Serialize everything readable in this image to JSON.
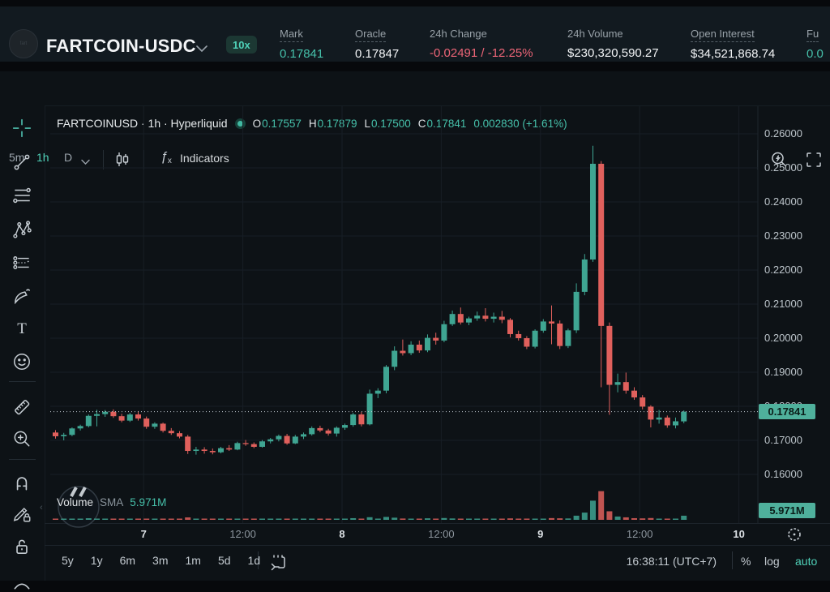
{
  "header": {
    "symbol": "FARTCOIN-USDC",
    "badge": "10x",
    "stats": [
      {
        "label": "Mark",
        "value": "0.17841"
      },
      {
        "label": "Oracle",
        "value": "0.17847"
      },
      {
        "label": "24h Change",
        "value": "-0.02491 / -12.25%"
      },
      {
        "label": "24h Volume",
        "value": "$230,320,590.27"
      },
      {
        "label": "Open Interest",
        "value": "$34,521,868.74"
      },
      {
        "label": "Fu",
        "value": "0.0"
      }
    ]
  },
  "toolbar": {
    "intervals": [
      {
        "label": "5m",
        "active": false
      },
      {
        "label": "1h",
        "active": true
      },
      {
        "label": "D",
        "active": false
      }
    ],
    "indicators_label": "Indicators"
  },
  "icons": {
    "fx_f": "ƒ",
    "fx_x": "x",
    "text_tool": "T"
  },
  "legend": {
    "symbol_line": "FARTCOINUSD · 1h · Hyperliquid",
    "ohlc": [
      {
        "k": "O",
        "v": "0.17557"
      },
      {
        "k": "H",
        "v": "0.17879"
      },
      {
        "k": "L",
        "v": "0.17500"
      },
      {
        "k": "C",
        "v": "0.17841"
      }
    ],
    "change": "0.002830 (+1.61%)"
  },
  "volume_indicator": {
    "title": "Volume",
    "sma": "SMA",
    "value": "5.971M"
  },
  "axis": {
    "price_tag": "0.17841",
    "volume_tag": "5.971M"
  },
  "bottom_toolbar": {
    "ranges": [
      "5y",
      "1y",
      "6m",
      "3m",
      "1m",
      "5d",
      "1d"
    ],
    "clock": "16:38:11 (UTC+7)",
    "percent": "%",
    "log": "log",
    "auto": "auto"
  },
  "chart_data": {
    "type": "candlestick",
    "title": "FARTCOINUSD · 1h · Hyperliquid",
    "interval": "1h",
    "exchange": "Hyperliquid",
    "current_price": 0.17841,
    "last": {
      "open": 0.17557,
      "high": 0.17879,
      "low": 0.175,
      "close": 0.17841,
      "change": "0.002830",
      "change_pct": "+1.61%"
    },
    "price_axis_range": [
      0.16,
      0.26
    ],
    "volume": {
      "current": "5.971M",
      "unit": "M"
    },
    "price_ticks": [
      {
        "value": 0.26,
        "label": "0.26000"
      },
      {
        "value": 0.25,
        "label": "0.25000"
      },
      {
        "value": 0.24,
        "label": "0.24000"
      },
      {
        "value": 0.23,
        "label": "0.23000"
      },
      {
        "value": 0.22,
        "label": "0.22000"
      },
      {
        "value": 0.21,
        "label": "0.21000"
      },
      {
        "value": 0.2,
        "label": "0.20000"
      },
      {
        "value": 0.19,
        "label": "0.19000"
      },
      {
        "value": 0.18,
        "label": "0.18000"
      },
      {
        "value": 0.17,
        "label": "0.17000"
      },
      {
        "value": 0.16,
        "label": "0.16000"
      }
    ],
    "time_ticks": [
      {
        "slot": 11,
        "label": "7",
        "major": true
      },
      {
        "slot": 23,
        "label": "12:00",
        "major": false
      },
      {
        "slot": 35,
        "label": "8",
        "major": true
      },
      {
        "slot": 47,
        "label": "12:00",
        "major": false
      },
      {
        "slot": 59,
        "label": "9",
        "major": true
      },
      {
        "slot": 71,
        "label": "12:00",
        "major": false
      },
      {
        "slot": 83,
        "label": "10",
        "major": true
      }
    ],
    "candles": [
      [
        0.1723,
        0.173,
        0.1705,
        0.1712,
        1.2
      ],
      [
        0.1712,
        0.1722,
        0.17,
        0.1716,
        0.9
      ],
      [
        0.1716,
        0.1738,
        0.1712,
        0.1735,
        1.1
      ],
      [
        0.1735,
        0.1746,
        0.1729,
        0.1742,
        1.0
      ],
      [
        0.1742,
        0.1776,
        0.1738,
        0.1772,
        2.3
      ],
      [
        0.1772,
        0.179,
        0.1741,
        0.1777,
        1.8
      ],
      [
        0.1777,
        0.1789,
        0.1769,
        0.1784,
        1.2
      ],
      [
        0.1784,
        0.1791,
        0.1766,
        0.1771,
        1.0
      ],
      [
        0.1771,
        0.1778,
        0.1753,
        0.1758,
        1.4
      ],
      [
        0.1758,
        0.1781,
        0.1754,
        0.1776,
        1.1
      ],
      [
        0.1776,
        0.1786,
        0.1758,
        0.1764,
        0.9
      ],
      [
        0.1764,
        0.177,
        0.1734,
        0.174,
        1.6
      ],
      [
        0.174,
        0.1753,
        0.1734,
        0.1749,
        0.8
      ],
      [
        0.1749,
        0.1752,
        0.1723,
        0.1728,
        1.3
      ],
      [
        0.1728,
        0.1736,
        0.1716,
        0.1721,
        1.0
      ],
      [
        0.1721,
        0.1727,
        0.1706,
        0.1711,
        1.2
      ],
      [
        0.1711,
        0.1716,
        0.166,
        0.1669,
        3.5
      ],
      [
        0.1669,
        0.1681,
        0.1658,
        0.1673,
        1.4
      ],
      [
        0.1673,
        0.168,
        0.1661,
        0.1669,
        0.9
      ],
      [
        0.1669,
        0.1676,
        0.1659,
        0.1665,
        0.8
      ],
      [
        0.1665,
        0.1681,
        0.1662,
        0.1677,
        1.0
      ],
      [
        0.1677,
        0.1686,
        0.1669,
        0.1673,
        0.7
      ],
      [
        0.1673,
        0.1696,
        0.1671,
        0.1692,
        1.2
      ],
      [
        0.1692,
        0.1701,
        0.1684,
        0.1689,
        0.8
      ],
      [
        0.1689,
        0.1694,
        0.1677,
        0.1681,
        0.9
      ],
      [
        0.1681,
        0.1701,
        0.1679,
        0.1697,
        1.0
      ],
      [
        0.1697,
        0.1707,
        0.1691,
        0.1703,
        0.9
      ],
      [
        0.1703,
        0.1717,
        0.1697,
        0.1713,
        1.1
      ],
      [
        0.1713,
        0.1719,
        0.1687,
        0.1691,
        1.5
      ],
      [
        0.1691,
        0.1716,
        0.1689,
        0.1711,
        1.0
      ],
      [
        0.1711,
        0.1723,
        0.1704,
        0.1718,
        0.9
      ],
      [
        0.1718,
        0.1741,
        0.1714,
        0.1736,
        1.4
      ],
      [
        0.1736,
        0.1743,
        0.1724,
        0.1729,
        0.8
      ],
      [
        0.1729,
        0.1734,
        0.1714,
        0.172,
        1.0
      ],
      [
        0.172,
        0.1741,
        0.1711,
        0.1737,
        1.2
      ],
      [
        0.1737,
        0.1749,
        0.1731,
        0.1745,
        1.1
      ],
      [
        0.1745,
        0.1781,
        0.174,
        0.1776,
        2.4
      ],
      [
        0.1776,
        0.1783,
        0.1741,
        0.1747,
        1.6
      ],
      [
        0.1747,
        0.1849,
        0.1744,
        0.1837,
        3.8
      ],
      [
        0.1837,
        0.1853,
        0.1824,
        0.1846,
        1.7
      ],
      [
        0.1846,
        0.1921,
        0.1838,
        0.1916,
        4.2
      ],
      [
        0.1916,
        0.1976,
        0.1906,
        0.1963,
        3.1
      ],
      [
        0.1963,
        0.1996,
        0.1949,
        0.1956,
        1.9
      ],
      [
        0.1956,
        0.1991,
        0.195,
        0.1981,
        1.6
      ],
      [
        0.1981,
        0.1993,
        0.1957,
        0.1964,
        1.2
      ],
      [
        0.1964,
        0.2011,
        0.1959,
        0.2001,
        2.2
      ],
      [
        0.2001,
        0.2016,
        0.1981,
        0.1993,
        1.3
      ],
      [
        0.1993,
        0.2051,
        0.1988,
        0.2041,
        2.6
      ],
      [
        0.2041,
        0.2081,
        0.2036,
        0.2071,
        2.0
      ],
      [
        0.2071,
        0.209,
        0.204,
        0.2046,
        1.4
      ],
      [
        0.2046,
        0.2063,
        0.2038,
        0.2058,
        1.1
      ],
      [
        0.2058,
        0.2078,
        0.2051,
        0.2066,
        1.0
      ],
      [
        0.2066,
        0.2088,
        0.2049,
        0.2057,
        1.2
      ],
      [
        0.2057,
        0.2075,
        0.2046,
        0.2063,
        0.9
      ],
      [
        0.2063,
        0.208,
        0.2044,
        0.2054,
        1.0
      ],
      [
        0.2054,
        0.2059,
        0.2002,
        0.2012,
        2.1
      ],
      [
        0.2012,
        0.2022,
        0.1993,
        0.2,
        1.3
      ],
      [
        0.2,
        0.2006,
        0.1968,
        0.1975,
        1.8
      ],
      [
        0.1975,
        0.2026,
        0.197,
        0.2022,
        1.6
      ],
      [
        0.2022,
        0.2056,
        0.2016,
        0.2049,
        1.7
      ],
      [
        0.2049,
        0.2096,
        0.1982,
        0.2043,
        2.5
      ],
      [
        0.2043,
        0.2052,
        0.1968,
        0.1977,
        2.2
      ],
      [
        0.1977,
        0.2028,
        0.1971,
        0.2023,
        2.0
      ],
      [
        0.2023,
        0.2161,
        0.2015,
        0.2136,
        6.0
      ],
      [
        0.2136,
        0.2247,
        0.2126,
        0.2231,
        10.5
      ],
      [
        0.2231,
        0.2565,
        0.2224,
        0.2512,
        27.8
      ],
      [
        0.2512,
        0.252,
        0.1856,
        0.2036,
        41.6
      ],
      [
        0.2036,
        0.2046,
        0.1775,
        0.1863,
        12.4
      ],
      [
        0.1863,
        0.1896,
        0.1841,
        0.1871,
        4.8
      ],
      [
        0.1871,
        0.1899,
        0.1837,
        0.1846,
        3.6
      ],
      [
        0.1846,
        0.1856,
        0.1819,
        0.1826,
        2.4
      ],
      [
        0.1826,
        0.1833,
        0.1791,
        0.1799,
        2.1
      ],
      [
        0.1799,
        0.1803,
        0.1738,
        0.1761,
        2.6
      ],
      [
        0.1761,
        0.1789,
        0.1749,
        0.1767,
        1.5
      ],
      [
        0.1767,
        0.1773,
        0.1737,
        0.1744,
        1.3
      ],
      [
        0.1744,
        0.1767,
        0.1735,
        0.1756,
        1.1
      ],
      [
        0.17557,
        0.17879,
        0.175,
        0.17841,
        5.971
      ]
    ]
  }
}
